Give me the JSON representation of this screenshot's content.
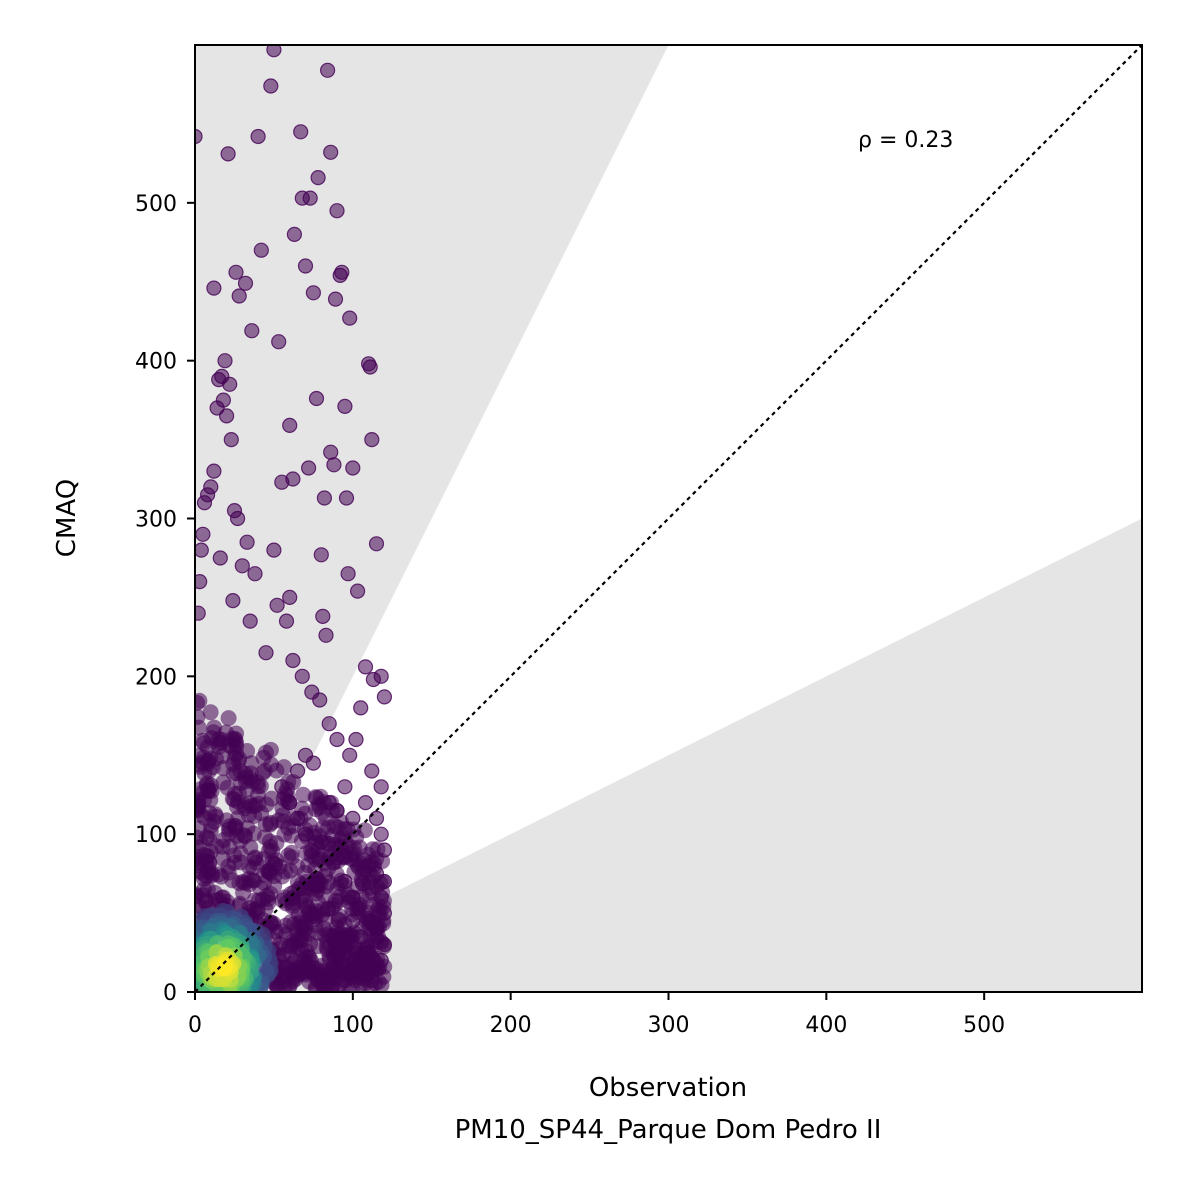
{
  "chart_data": {
    "type": "scatter",
    "xlabel": "Observation",
    "xlabel2": "PM10_SP44_Parque Dom Pedro II",
    "ylabel": "CMAQ",
    "xlim": [
      0,
      600
    ],
    "ylim": [
      0,
      600
    ],
    "xticks": [
      "0",
      "100",
      "200",
      "300",
      "400",
      "500"
    ],
    "yticks": [
      "0",
      "100",
      "200",
      "300",
      "400",
      "500"
    ],
    "annotation": "ρ = 0.23",
    "one_to_one_line": true,
    "factor_of_two_band": {
      "upper_slope": 2,
      "lower_slope": 0.5
    },
    "colormap": "viridis",
    "colors": {
      "band": "#e5e5e5",
      "low_density": "#440154",
      "mid_density": "#21918c",
      "high_density": "#fde725"
    },
    "points": [
      [
        0,
        542
      ],
      [
        12,
        446
      ],
      [
        15,
        388
      ],
      [
        21,
        531
      ],
      [
        26,
        456
      ],
      [
        28,
        441
      ],
      [
        32,
        449
      ],
      [
        36,
        419
      ],
      [
        40,
        542
      ],
      [
        42,
        470
      ],
      [
        48,
        574
      ],
      [
        50,
        597
      ],
      [
        53,
        412
      ],
      [
        55,
        323
      ],
      [
        60,
        359
      ],
      [
        62,
        325
      ],
      [
        63,
        480
      ],
      [
        67,
        545
      ],
      [
        68,
        503
      ],
      [
        70,
        460
      ],
      [
        72,
        332
      ],
      [
        73,
        503
      ],
      [
        75,
        443
      ],
      [
        77,
        376
      ],
      [
        78,
        516
      ],
      [
        80,
        277
      ],
      [
        81,
        238
      ],
      [
        82,
        313
      ],
      [
        83,
        226
      ],
      [
        84,
        584
      ],
      [
        86,
        532
      ],
      [
        86,
        342
      ],
      [
        88,
        334
      ],
      [
        89,
        439
      ],
      [
        90,
        495
      ],
      [
        92,
        454
      ],
      [
        93,
        456
      ],
      [
        95,
        371
      ],
      [
        96,
        313
      ],
      [
        97,
        265
      ],
      [
        98,
        427
      ],
      [
        100,
        332
      ],
      [
        103,
        254
      ],
      [
        108,
        206
      ],
      [
        110,
        398
      ],
      [
        111,
        396
      ],
      [
        112,
        350
      ],
      [
        113,
        198
      ],
      [
        115,
        284
      ],
      [
        118,
        200
      ],
      [
        120,
        187
      ],
      [
        105,
        180
      ],
      [
        102,
        160
      ],
      [
        98,
        150
      ],
      [
        112,
        140
      ],
      [
        118,
        130
      ],
      [
        95,
        130
      ],
      [
        60,
        250
      ],
      [
        50,
        280
      ],
      [
        45,
        215
      ],
      [
        38,
        265
      ],
      [
        33,
        285
      ],
      [
        30,
        270
      ],
      [
        27,
        300
      ],
      [
        25,
        305
      ],
      [
        23,
        350
      ],
      [
        20,
        365
      ],
      [
        18,
        375
      ],
      [
        17,
        390
      ],
      [
        19,
        400
      ],
      [
        22,
        385
      ],
      [
        14,
        370
      ],
      [
        12,
        330
      ],
      [
        10,
        320
      ],
      [
        8,
        315
      ],
      [
        6,
        310
      ],
      [
        5,
        290
      ],
      [
        4,
        280
      ],
      [
        3,
        260
      ],
      [
        2,
        240
      ],
      [
        16,
        275
      ],
      [
        24,
        248
      ],
      [
        35,
        235
      ],
      [
        52,
        245
      ],
      [
        58,
        235
      ],
      [
        62,
        210
      ],
      [
        68,
        200
      ],
      [
        74,
        190
      ],
      [
        79,
        185
      ],
      [
        85,
        170
      ],
      [
        90,
        160
      ],
      [
        70,
        150
      ],
      [
        75,
        145
      ],
      [
        65,
        140
      ],
      [
        55,
        130
      ],
      [
        85,
        120
      ],
      [
        90,
        115
      ],
      [
        100,
        110
      ],
      [
        108,
        120
      ],
      [
        115,
        110
      ],
      [
        118,
        100
      ],
      [
        120,
        90
      ],
      [
        110,
        80
      ],
      [
        115,
        75
      ],
      [
        120,
        70
      ],
      [
        118,
        60
      ],
      [
        120,
        50
      ],
      [
        115,
        40
      ],
      [
        120,
        30
      ],
      [
        118,
        20
      ],
      [
        110,
        25
      ],
      [
        105,
        35
      ],
      [
        100,
        45
      ],
      [
        100,
        60
      ],
      [
        95,
        70
      ],
      [
        90,
        85
      ],
      [
        80,
        95
      ],
      [
        70,
        100
      ],
      [
        65,
        110
      ],
      [
        60,
        120
      ]
    ]
  }
}
